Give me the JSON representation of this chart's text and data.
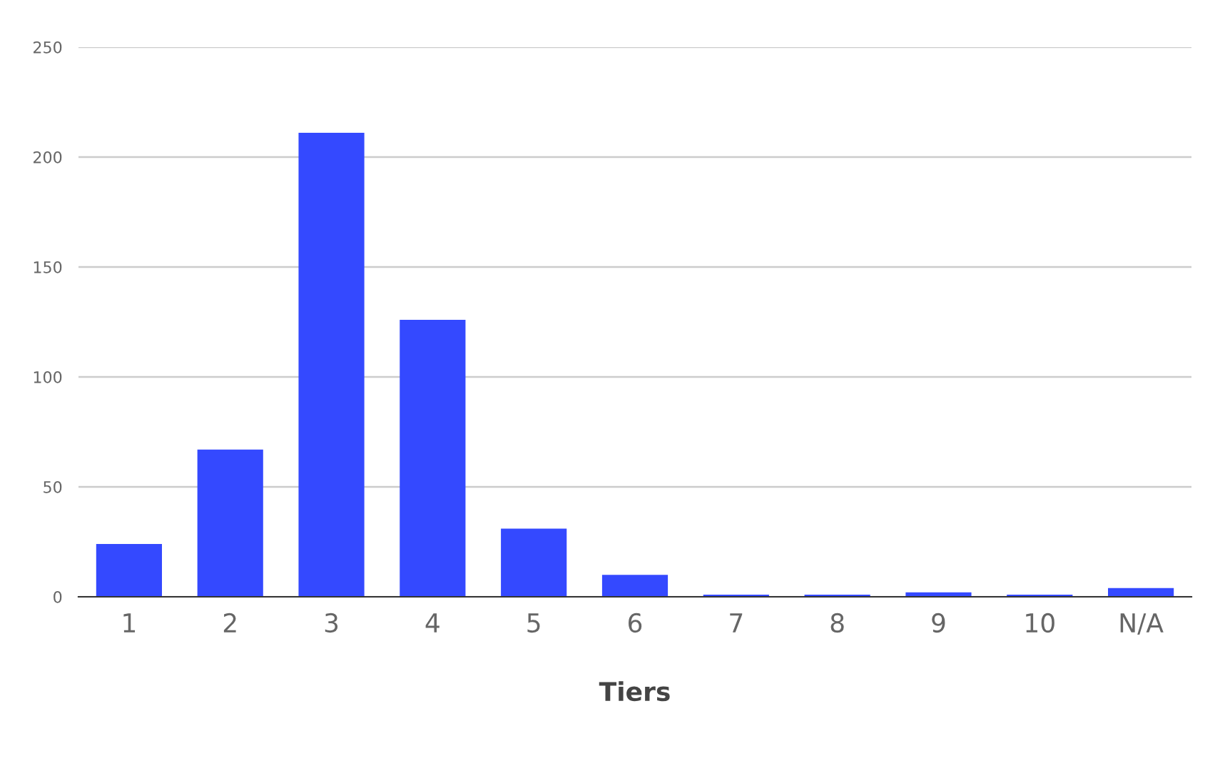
{
  "chart_data": {
    "type": "bar",
    "xlabel": "Tiers",
    "categories": [
      "1",
      "2",
      "3",
      "4",
      "5",
      "6",
      "7",
      "8",
      "9",
      "10",
      "N/A"
    ],
    "series": [
      {
        "color": "#3449ff",
        "values": [
          24,
          67,
          211,
          126,
          31,
          10,
          1,
          1,
          2,
          1,
          4
        ]
      }
    ],
    "ylim": [
      0,
      250
    ],
    "yticks": [
      0,
      50,
      100,
      150,
      200,
      250
    ],
    "grid": "y",
    "legend": false
  }
}
